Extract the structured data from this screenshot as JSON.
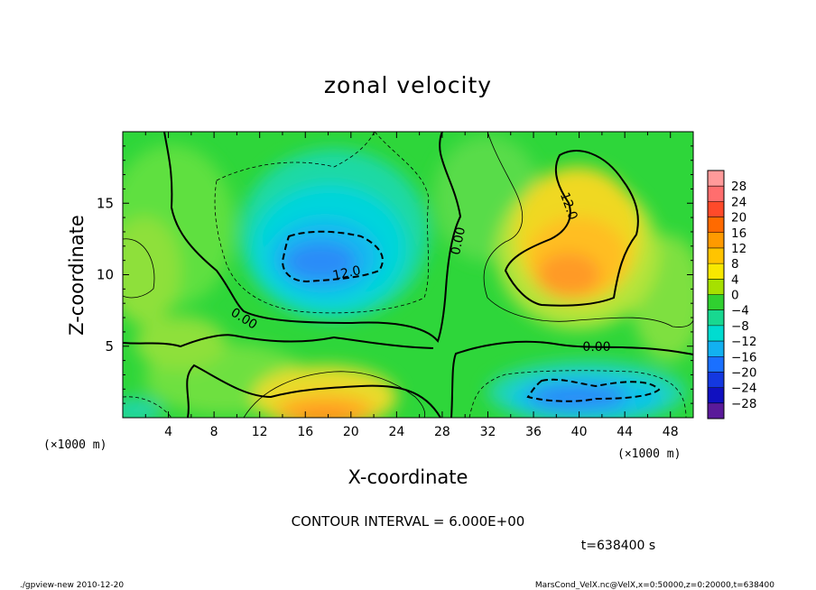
{
  "chart_data": {
    "type": "heatmap",
    "title": "zonal velocity",
    "xlabel": "X-coordinate",
    "ylabel": "Z-coordinate",
    "x_unit": "(×1000 m)",
    "y_unit": "(×1000 m)",
    "xlim": [
      0,
      50
    ],
    "ylim": [
      0,
      20
    ],
    "x_ticks": [
      "4",
      "8",
      "12",
      "16",
      "20",
      "24",
      "28",
      "32",
      "36",
      "40",
      "44",
      "48"
    ],
    "y_ticks": [
      "5",
      "10",
      "15"
    ],
    "colorbar": {
      "levels": [
        "28",
        "24",
        "20",
        "16",
        "12",
        "8",
        "4",
        "0",
        "−4",
        "−8",
        "−12",
        "−16",
        "−20",
        "−24",
        "−28"
      ],
      "colors": [
        "#ff6e6e",
        "#ff4a2a",
        "#ff6a00",
        "#ff9a00",
        "#ffc400",
        "#f8e800",
        "#a6e000",
        "#30d030",
        "#18d890",
        "#00dcd0",
        "#12b0f0",
        "#1a70ff",
        "#1438e0",
        "#1010c0",
        "#5a1a9a"
      ]
    },
    "contour_labels": [
      "12.0",
      "0.00",
      "12.0",
      "0.00",
      "0.00"
    ],
    "contour_interval_text": "CONTOUR INTERVAL = 6.000E+00",
    "time_text": "t=638400 s",
    "footer_left": "./gpview-new  2010-12-20",
    "footer_right": "MarsCond_VelX.nc@VelX,x=0:50000,z=0:20000,t=638400"
  }
}
